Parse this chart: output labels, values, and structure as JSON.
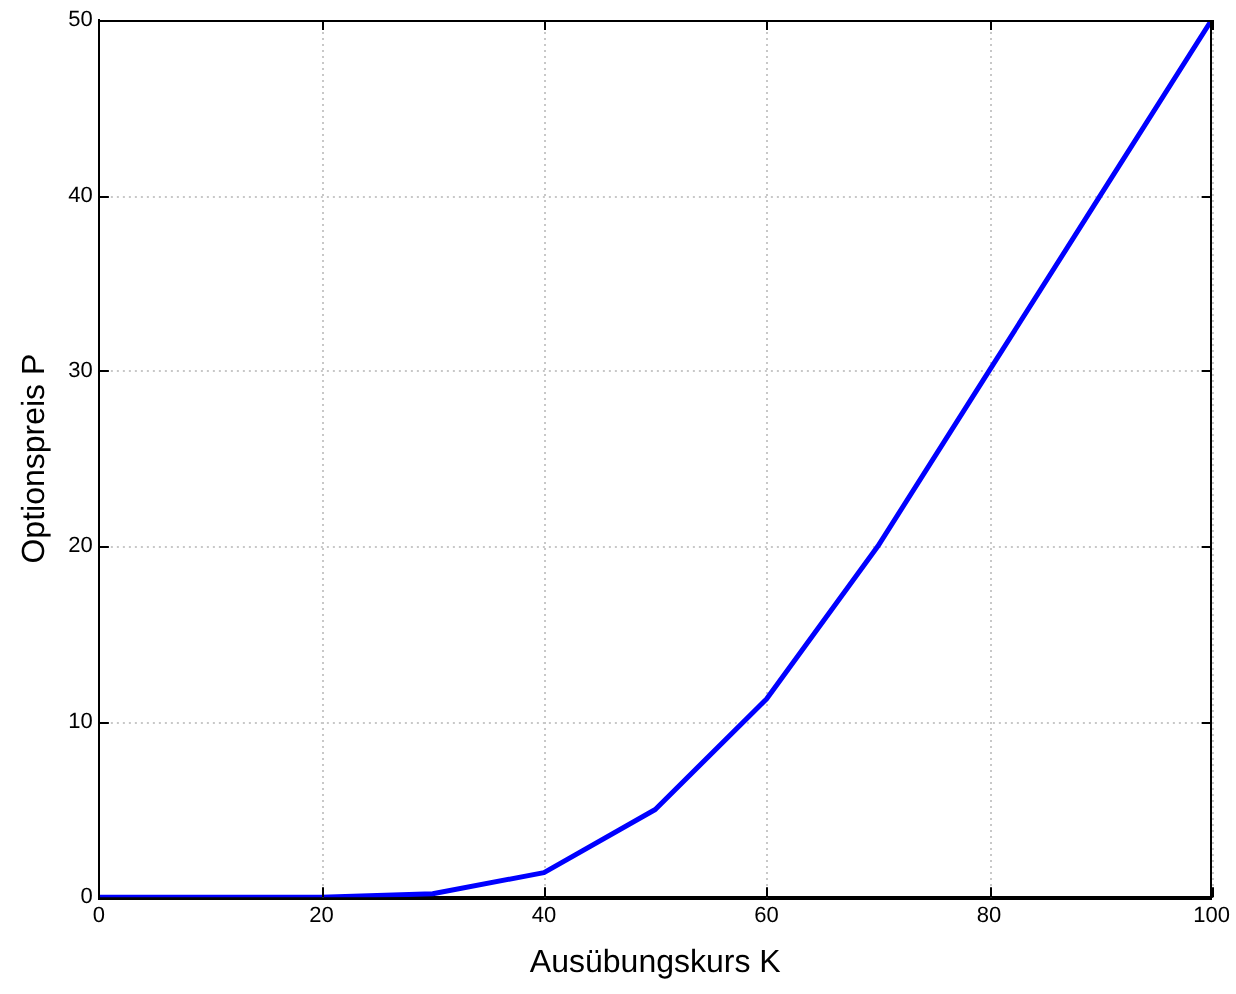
{
  "chart_data": {
    "type": "line",
    "xlabel": "Ausübungskurs K",
    "ylabel": "Optionspreis P",
    "x": [
      0,
      10,
      20,
      30,
      40,
      50,
      60,
      70,
      80,
      90,
      100
    ],
    "series": [
      {
        "color": "#0000ff",
        "values": [
          0,
          0,
          0,
          0.2,
          1.4,
          5,
          11.3,
          20,
          30,
          40,
          50
        ]
      }
    ],
    "xlim": [
      0,
      100
    ],
    "xticks": [
      0,
      20,
      40,
      60,
      80,
      100
    ],
    "ylim": [
      0,
      50
    ],
    "yticks": [
      0,
      10,
      20,
      30,
      40,
      50
    ],
    "grid": true,
    "legend": false,
    "marker": "none",
    "line_style": "solid"
  }
}
